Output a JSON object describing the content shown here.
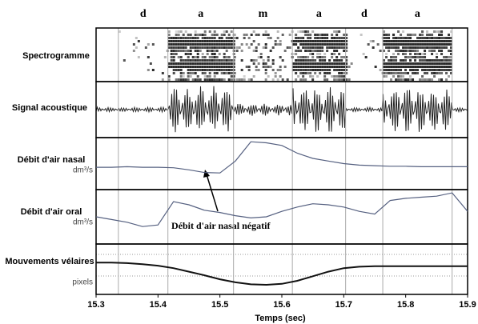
{
  "chart_data": {
    "type": "line",
    "xlabel": "Temps (sec)",
    "xlim": [
      15.3,
      15.9
    ],
    "xticks": [
      15.3,
      15.4,
      15.5,
      15.6,
      15.7,
      15.8,
      15.9
    ],
    "segment_labels": [
      "d",
      "a",
      "m",
      "a",
      "d",
      "a"
    ],
    "boundaries": [
      15.336,
      15.416,
      15.522,
      15.617,
      15.703,
      15.763,
      15.875
    ],
    "spectrogram_label": "Spectrogramme",
    "signal_label": "Signal acoustique",
    "annotation": "Débit d'air nasal négatif",
    "x": [
      15.3,
      15.325,
      15.35,
      15.375,
      15.4,
      15.425,
      15.45,
      15.475,
      15.5,
      15.525,
      15.55,
      15.575,
      15.6,
      15.625,
      15.65,
      15.675,
      15.7,
      15.725,
      15.75,
      15.775,
      15.8,
      15.825,
      15.85,
      15.875,
      15.9
    ],
    "series": [
      {
        "name": "Débit d'air nasal",
        "unit": "dm³/s",
        "color": "#556080",
        "ylim": [
          0,
          1
        ],
        "values": [
          0.43,
          0.43,
          0.44,
          0.43,
          0.43,
          0.42,
          0.38,
          0.33,
          0.32,
          0.55,
          0.92,
          0.9,
          0.85,
          0.7,
          0.6,
          0.55,
          0.5,
          0.47,
          0.46,
          0.45,
          0.45,
          0.44,
          0.44,
          0.44,
          0.44
        ]
      },
      {
        "name": "Débit d'air oral",
        "unit": "dm³/s",
        "color": "#556080",
        "ylim": [
          0,
          1
        ],
        "values": [
          0.5,
          0.45,
          0.4,
          0.32,
          0.35,
          0.78,
          0.72,
          0.62,
          0.58,
          0.52,
          0.48,
          0.5,
          0.6,
          0.68,
          0.74,
          0.72,
          0.68,
          0.6,
          0.55,
          0.8,
          0.84,
          0.86,
          0.88,
          0.94,
          0.6
        ]
      },
      {
        "name": "Mouvements vélaires",
        "unit": "pixels",
        "color": "#111111",
        "ylim": [
          0,
          1
        ],
        "values": [
          0.63,
          0.63,
          0.62,
          0.6,
          0.57,
          0.52,
          0.45,
          0.38,
          0.3,
          0.24,
          0.2,
          0.19,
          0.21,
          0.27,
          0.36,
          0.45,
          0.52,
          0.55,
          0.56,
          0.56,
          0.56,
          0.56,
          0.56,
          0.56,
          0.56
        ]
      }
    ]
  }
}
